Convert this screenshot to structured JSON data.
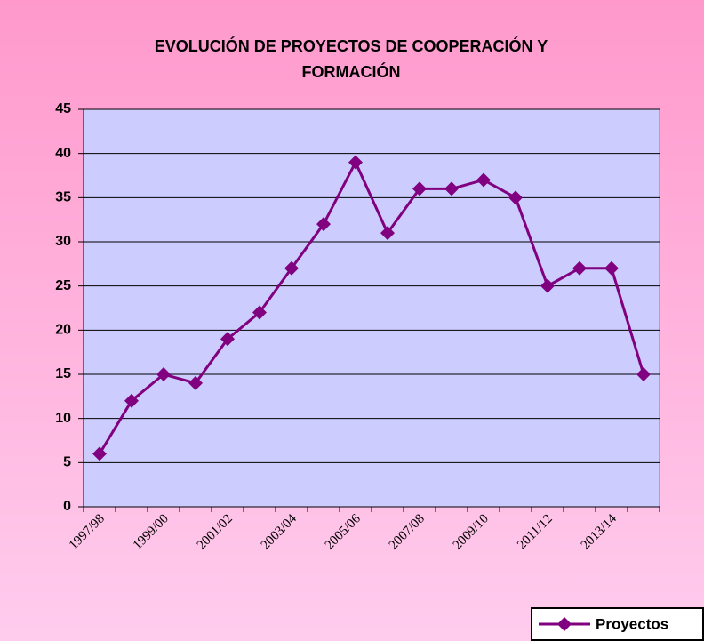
{
  "chart_data": {
    "type": "line",
    "title": "EVOLUCIÓN DE PROYECTOS DE COOPERACIÓN Y FORMACIÓN",
    "categories": [
      "1997/98",
      null,
      "1999/00",
      null,
      "2001/02",
      null,
      "2003/04",
      null,
      "2005/06",
      null,
      "2007/08",
      null,
      "2009/10",
      null,
      "2011/12",
      null,
      "2013/14",
      null
    ],
    "series": [
      {
        "name": "Proyectos",
        "color": "#800080",
        "values": [
          6,
          12,
          15,
          14,
          19,
          22,
          27,
          32,
          39,
          31,
          36,
          36,
          37,
          35,
          25,
          27,
          27,
          15
        ]
      }
    ],
    "ylim": [
      0,
      45
    ],
    "yticks": [
      0,
      5,
      10,
      15,
      20,
      25,
      30,
      35,
      40,
      45
    ],
    "grid": true,
    "legend": "bottom-right"
  }
}
